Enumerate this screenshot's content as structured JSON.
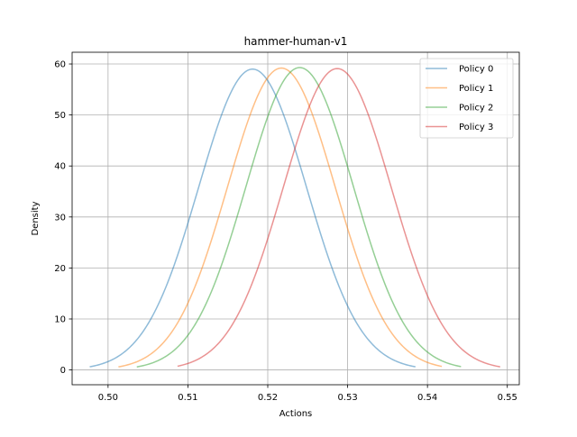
{
  "chart_data": {
    "type": "line",
    "title": "hammer-human-v1",
    "xlabel": "Actions",
    "ylabel": "Density",
    "xlim": [
      0.4955,
      0.5515
    ],
    "ylim": [
      -2.9,
      62.3
    ],
    "x_ticks": [
      0.5,
      0.51,
      0.52,
      0.53,
      0.54,
      0.55
    ],
    "x_tick_labels": [
      "0.50",
      "0.51",
      "0.52",
      "0.53",
      "0.54",
      "0.55"
    ],
    "y_ticks": [
      0,
      10,
      20,
      30,
      40,
      50,
      60
    ],
    "y_tick_labels": [
      "0",
      "10",
      "20",
      "30",
      "40",
      "50",
      "60"
    ],
    "grid": true,
    "legend_position": "top-right",
    "series": [
      {
        "name": "Policy 0",
        "color": "#1f77b4",
        "mean": 0.5181,
        "peak": 59.0,
        "x_range": [
          0.4977,
          0.5385
        ]
      },
      {
        "name": "Policy 1",
        "color": "#ff7f0e",
        "mean": 0.5217,
        "peak": 59.2,
        "x_range": [
          0.5013,
          0.5418
        ]
      },
      {
        "name": "Policy 2",
        "color": "#2ca02c",
        "mean": 0.524,
        "peak": 59.3,
        "x_range": [
          0.5036,
          0.5442
        ]
      },
      {
        "name": "Policy 3",
        "color": "#d62728",
        "mean": 0.5287,
        "peak": 59.1,
        "x_range": [
          0.5087,
          0.5491
        ]
      }
    ]
  }
}
